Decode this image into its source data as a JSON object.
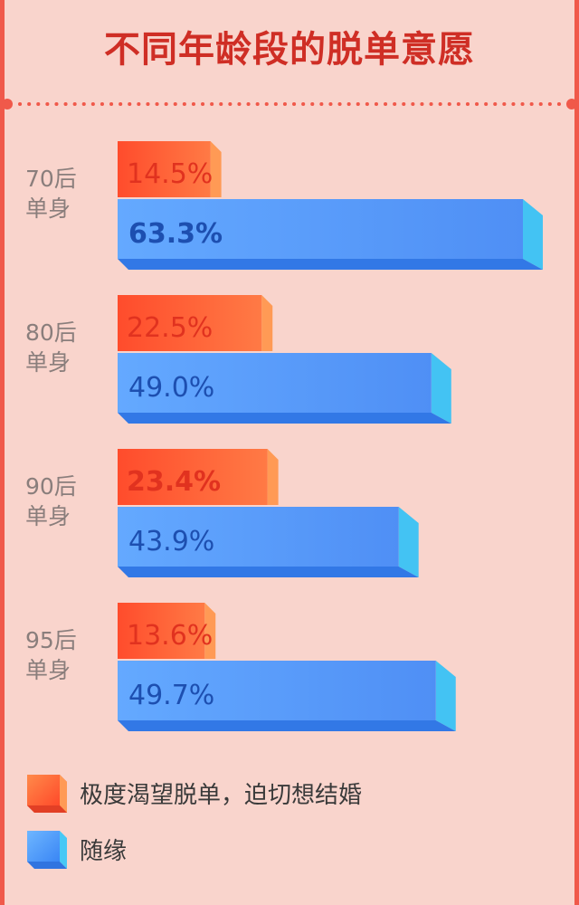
{
  "title": "不同年龄段的脱单意愿",
  "chart_data": {
    "type": "bar",
    "orientation": "horizontal",
    "title": "不同年龄段的脱单意愿",
    "categories": [
      [
        "70后",
        "单身"
      ],
      [
        "80后",
        "单身"
      ],
      [
        "90后",
        "单身"
      ],
      [
        "95后",
        "单身"
      ]
    ],
    "series": [
      {
        "name": "极度渴望脱单，迫切想结婚",
        "values": [
          14.5,
          22.5,
          23.4,
          13.6
        ],
        "labels": [
          "14.5%",
          "22.5%",
          "23.4%",
          "13.6%"
        ],
        "color": "#ff6a3d"
      },
      {
        "name": "随缘",
        "values": [
          63.3,
          49.0,
          43.9,
          49.7
        ],
        "labels": [
          "63.3%",
          "49.0%",
          "43.9%",
          "49.7%"
        ],
        "color": "#4f9dfb"
      }
    ],
    "xlim": [
      0,
      63.3
    ],
    "grid": false,
    "legend": "bottom-left"
  },
  "colors": {
    "background": "#f9d4cc",
    "title": "#cf2e25",
    "accent_red": "#f0594a",
    "orange": "#ff6a3d",
    "blue": "#4f9dfb",
    "category_text": "#8a7e7c"
  }
}
